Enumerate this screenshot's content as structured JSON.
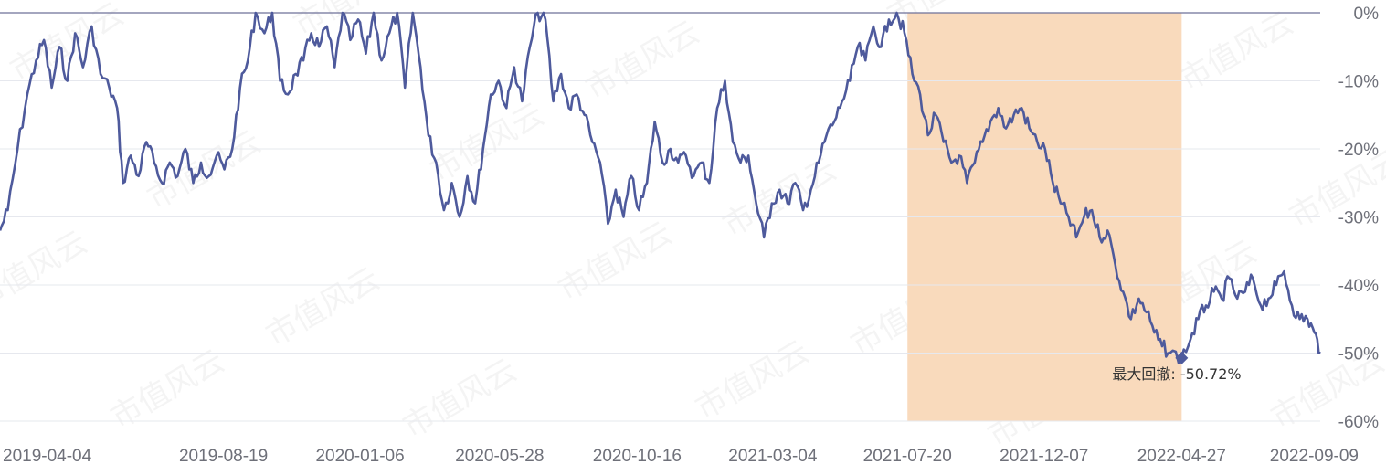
{
  "chart_data": {
    "type": "line",
    "title": "",
    "xlabel": "",
    "ylabel": "",
    "x_start": "2019-01-02",
    "x_end": "2022-09-16",
    "x_ticks": [
      "2019-04-04",
      "2019-08-19",
      "2020-01-06",
      "2020-05-28",
      "2020-10-16",
      "2021-03-04",
      "2021-07-20",
      "2021-12-07",
      "2022-04-27",
      "2022-09-09"
    ],
    "ylim": [
      -60,
      0
    ],
    "y_ticks": [
      0,
      -10,
      -20,
      -30,
      -40,
      -50,
      -60
    ],
    "y_tick_labels": [
      "0%",
      "-10%",
      "-20%",
      "-30%",
      "-40%",
      "-50%",
      "-60%"
    ],
    "grid": true,
    "line_color": "#4e5a9c",
    "highlight_color": "#f9d8b8",
    "highlight_range": [
      "2021-07-20",
      "2022-04-27"
    ],
    "watermark_text": "市值风云",
    "max_drawdown": {
      "date": "2022-04-27",
      "value": -50.72,
      "label": "最大回撤: -50.72%"
    },
    "series": [
      {
        "values": [
          [
            "2019-01-02",
            -32
          ],
          [
            "2019-01-10",
            -29
          ],
          [
            "2019-01-20",
            -20
          ],
          [
            "2019-01-30",
            -12
          ],
          [
            "2019-02-08",
            -7
          ],
          [
            "2019-02-16",
            -4
          ],
          [
            "2019-02-24",
            -11
          ],
          [
            "2019-03-04",
            -5
          ],
          [
            "2019-03-12",
            -10
          ],
          [
            "2019-03-20",
            -3
          ],
          [
            "2019-03-28",
            -8
          ],
          [
            "2019-04-06",
            -2
          ],
          [
            "2019-04-15",
            -9
          ],
          [
            "2019-04-24",
            -11
          ],
          [
            "2019-05-02",
            -14
          ],
          [
            "2019-05-08",
            -25
          ],
          [
            "2019-05-16",
            -21
          ],
          [
            "2019-05-24",
            -24
          ],
          [
            "2019-06-01",
            -19
          ],
          [
            "2019-06-09",
            -22
          ],
          [
            "2019-06-17",
            -25
          ],
          [
            "2019-06-25",
            -22
          ],
          [
            "2019-07-03",
            -24
          ],
          [
            "2019-07-11",
            -20
          ],
          [
            "2019-07-19",
            -25
          ],
          [
            "2019-07-27",
            -22
          ],
          [
            "2019-08-04",
            -24
          ],
          [
            "2019-08-12",
            -21
          ],
          [
            "2019-08-20",
            -23
          ],
          [
            "2019-08-28",
            -20
          ],
          [
            "2019-09-05",
            -11
          ],
          [
            "2019-09-13",
            -7
          ],
          [
            "2019-09-21",
            0
          ],
          [
            "2019-09-30",
            -3
          ],
          [
            "2019-10-08",
            0
          ],
          [
            "2019-10-16",
            -10
          ],
          [
            "2019-10-24",
            -12
          ],
          [
            "2019-11-01",
            -9
          ],
          [
            "2019-11-09",
            -7
          ],
          [
            "2019-11-17",
            -3
          ],
          [
            "2019-11-25",
            -5
          ],
          [
            "2019-12-03",
            -2
          ],
          [
            "2019-12-11",
            -8
          ],
          [
            "2019-12-19",
            0
          ],
          [
            "2019-12-27",
            -4
          ],
          [
            "2020-01-04",
            -1
          ],
          [
            "2020-01-12",
            -6
          ],
          [
            "2020-01-20",
            0
          ],
          [
            "2020-01-28",
            -7
          ],
          [
            "2020-02-05",
            -3
          ],
          [
            "2020-02-13",
            0
          ],
          [
            "2020-02-21",
            -11
          ],
          [
            "2020-02-29",
            0
          ],
          [
            "2020-03-08",
            -8
          ],
          [
            "2020-03-16",
            -18
          ],
          [
            "2020-03-24",
            -22
          ],
          [
            "2020-04-01",
            -29
          ],
          [
            "2020-04-09",
            -25
          ],
          [
            "2020-04-17",
            -30
          ],
          [
            "2020-04-25",
            -24
          ],
          [
            "2020-05-03",
            -28
          ],
          [
            "2020-05-11",
            -20
          ],
          [
            "2020-05-19",
            -12
          ],
          [
            "2020-05-27",
            -10
          ],
          [
            "2020-06-04",
            -14
          ],
          [
            "2020-06-12",
            -8
          ],
          [
            "2020-06-20",
            -13
          ],
          [
            "2020-06-28",
            -5
          ],
          [
            "2020-07-06",
            0
          ],
          [
            "2020-07-14",
            -1
          ],
          [
            "2020-07-22",
            -13
          ],
          [
            "2020-07-30",
            -9
          ],
          [
            "2020-08-07",
            -14
          ],
          [
            "2020-08-15",
            -12
          ],
          [
            "2020-08-23",
            -15
          ],
          [
            "2020-08-31",
            -19
          ],
          [
            "2020-09-08",
            -22
          ],
          [
            "2020-09-16",
            -31
          ],
          [
            "2020-09-24",
            -26
          ],
          [
            "2020-10-02",
            -30
          ],
          [
            "2020-10-10",
            -24
          ],
          [
            "2020-10-18",
            -29
          ],
          [
            "2020-10-26",
            -25
          ],
          [
            "2020-11-03",
            -16
          ],
          [
            "2020-11-11",
            -22
          ],
          [
            "2020-11-19",
            -20
          ],
          [
            "2020-11-27",
            -22
          ],
          [
            "2020-12-05",
            -21
          ],
          [
            "2020-12-13",
            -24
          ],
          [
            "2020-12-21",
            -22
          ],
          [
            "2020-12-29",
            -25
          ],
          [
            "2021-01-06",
            -14
          ],
          [
            "2021-01-14",
            -10
          ],
          [
            "2021-01-22",
            -19
          ],
          [
            "2021-01-30",
            -22
          ],
          [
            "2021-02-07",
            -21
          ],
          [
            "2021-02-15",
            -28
          ],
          [
            "2021-02-23",
            -33
          ],
          [
            "2021-03-03",
            -28
          ],
          [
            "2021-03-11",
            -26
          ],
          [
            "2021-03-19",
            -28
          ],
          [
            "2021-03-27",
            -25
          ],
          [
            "2021-04-04",
            -29
          ],
          [
            "2021-04-12",
            -26
          ],
          [
            "2021-04-20",
            -22
          ],
          [
            "2021-04-28",
            -18
          ],
          [
            "2021-05-06",
            -16
          ],
          [
            "2021-05-14",
            -13
          ],
          [
            "2021-05-22",
            -10
          ],
          [
            "2021-05-30",
            -5
          ],
          [
            "2021-06-07",
            -7
          ],
          [
            "2021-06-15",
            -2
          ],
          [
            "2021-06-23",
            -5
          ],
          [
            "2021-07-01",
            -1
          ],
          [
            "2021-07-09",
            0
          ],
          [
            "2021-07-17",
            -3
          ],
          [
            "2021-07-25",
            -9
          ],
          [
            "2021-08-02",
            -12
          ],
          [
            "2021-08-10",
            -18
          ],
          [
            "2021-08-18",
            -15
          ],
          [
            "2021-08-26",
            -19
          ],
          [
            "2021-09-03",
            -22
          ],
          [
            "2021-09-11",
            -21
          ],
          [
            "2021-09-19",
            -25
          ],
          [
            "2021-09-27",
            -22
          ],
          [
            "2021-10-05",
            -19
          ],
          [
            "2021-10-13",
            -16
          ],
          [
            "2021-10-21",
            -14
          ],
          [
            "2021-10-29",
            -17
          ],
          [
            "2021-11-06",
            -15
          ],
          [
            "2021-11-14",
            -14
          ],
          [
            "2021-11-22",
            -17
          ],
          [
            "2021-11-30",
            -19
          ],
          [
            "2021-12-08",
            -20
          ],
          [
            "2021-12-16",
            -25
          ],
          [
            "2021-12-24",
            -28
          ],
          [
            "2022-01-01",
            -30
          ],
          [
            "2022-01-09",
            -33
          ],
          [
            "2022-01-17",
            -30
          ],
          [
            "2022-01-25",
            -29
          ],
          [
            "2022-02-02",
            -33
          ],
          [
            "2022-02-10",
            -32
          ],
          [
            "2022-02-18",
            -37
          ],
          [
            "2022-02-26",
            -41
          ],
          [
            "2022-03-06",
            -45
          ],
          [
            "2022-03-14",
            -42
          ],
          [
            "2022-03-22",
            -44
          ],
          [
            "2022-03-30",
            -47
          ],
          [
            "2022-04-07",
            -49
          ],
          [
            "2022-04-15",
            -50
          ],
          [
            "2022-04-27",
            -50.72
          ],
          [
            "2022-05-06",
            -48
          ],
          [
            "2022-05-14",
            -45
          ],
          [
            "2022-05-22",
            -43
          ],
          [
            "2022-05-30",
            -41
          ],
          [
            "2022-06-07",
            -42
          ],
          [
            "2022-06-15",
            -39
          ],
          [
            "2022-06-23",
            -42
          ],
          [
            "2022-07-01",
            -41
          ],
          [
            "2022-07-09",
            -39
          ],
          [
            "2022-07-17",
            -43
          ],
          [
            "2022-07-25",
            -42
          ],
          [
            "2022-08-02",
            -40
          ],
          [
            "2022-08-10",
            -38
          ],
          [
            "2022-08-18",
            -43
          ],
          [
            "2022-08-26",
            -45
          ],
          [
            "2022-09-03",
            -45
          ],
          [
            "2022-09-10",
            -47
          ],
          [
            "2022-09-16",
            -49.8
          ]
        ]
      }
    ]
  }
}
